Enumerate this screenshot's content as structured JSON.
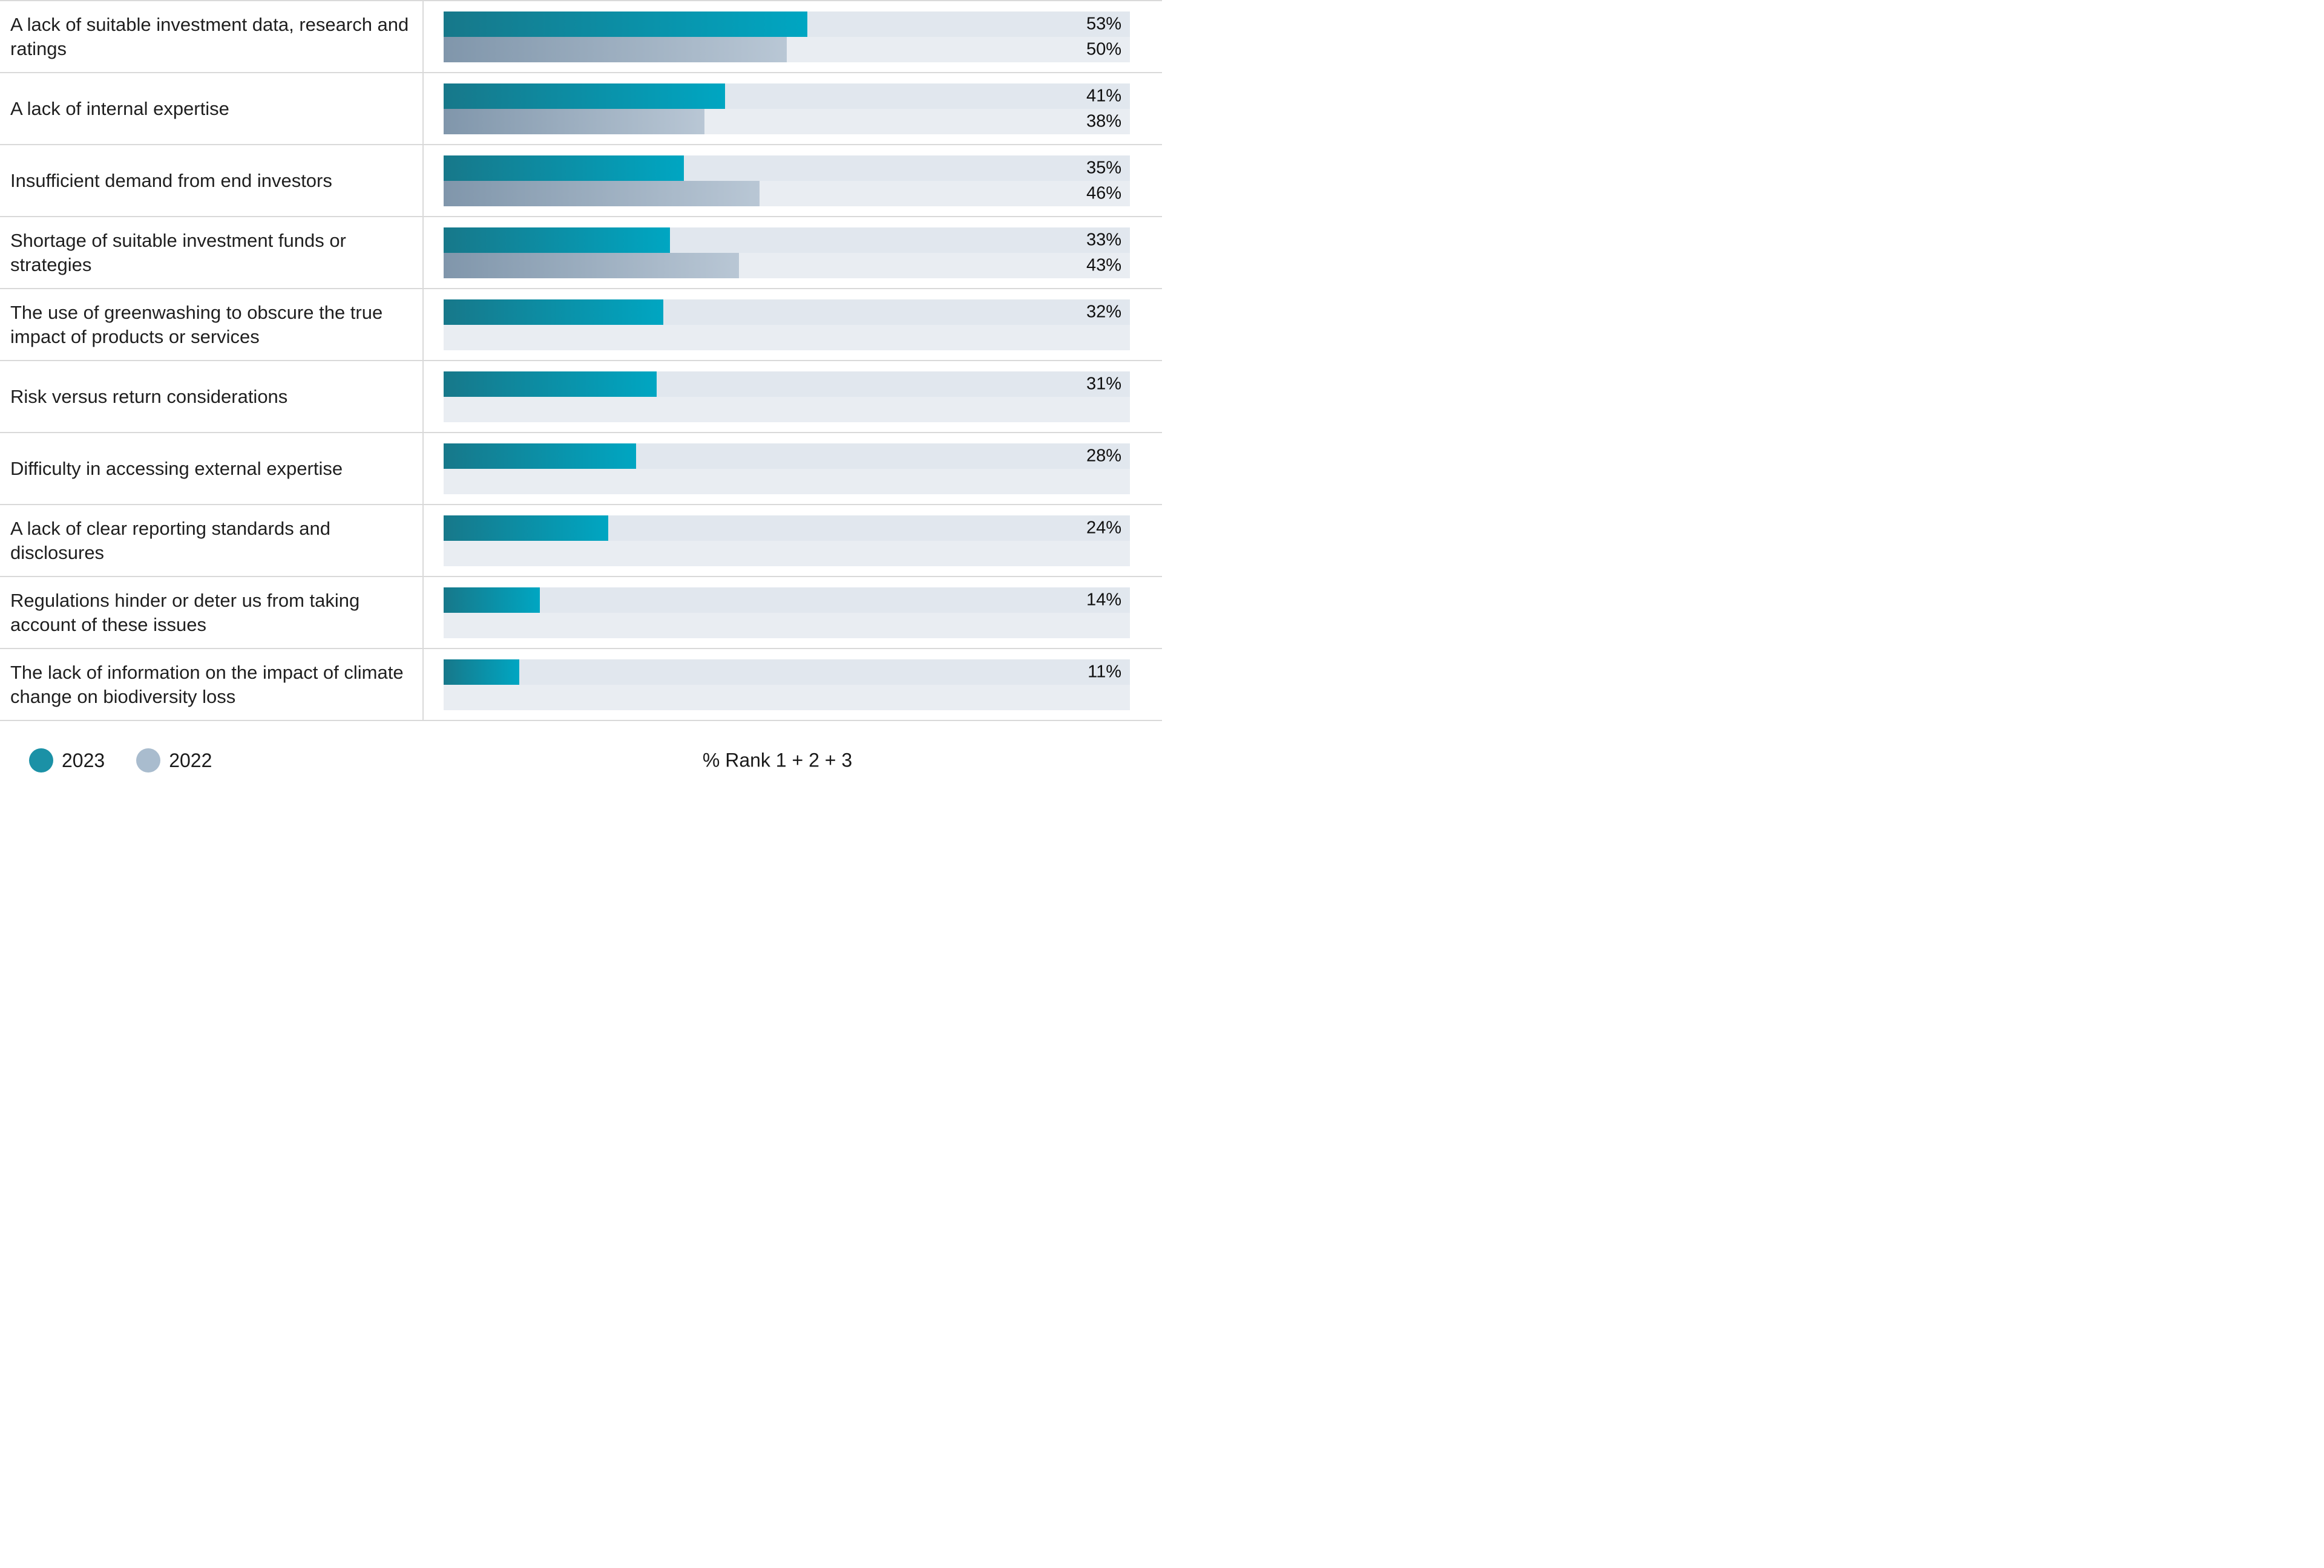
{
  "chart_data": {
    "type": "bar",
    "orientation": "horizontal",
    "title": "",
    "xlabel": "% Rank 1 + 2 + 3",
    "xlim": [
      0,
      100
    ],
    "value_suffix": "%",
    "grid": false,
    "legend_position": "bottom-left",
    "categories": [
      "A lack of suitable investment data, research and ratings",
      "A lack of internal expertise",
      "Insufficient demand from end investors",
      "Shortage of suitable investment funds or strategies",
      "The use of greenwashing to obscure the true impact of products or services",
      "Risk versus return considerations",
      "Difficulty in accessing external expertise",
      "A lack of clear reporting standards and disclosures",
      "Regulations hinder or deter us from taking account of these issues",
      "The lack of information on the impact of climate change on biodiversity loss"
    ],
    "series": [
      {
        "name": "2023",
        "values": [
          53,
          41,
          35,
          33,
          32,
          31,
          28,
          24,
          14,
          11
        ]
      },
      {
        "name": "2022",
        "values": [
          50,
          38,
          46,
          43,
          null,
          null,
          null,
          null,
          null,
          null
        ]
      }
    ]
  },
  "legend": {
    "items": [
      {
        "label": "2023",
        "color": "#1b91a6"
      },
      {
        "label": "2022",
        "color": "#a9bcce"
      }
    ]
  },
  "footer": {
    "axis_note": "% Rank 1 + 2 + 3"
  },
  "colors": {
    "bar_2023_start": "#17788a",
    "bar_2023_end": "#00a6c2",
    "bar_2022_start": "#8096ab",
    "bar_2022_end": "#b9c7d5",
    "track_top": "#e1e7ee",
    "track_bottom": "#e9edf2",
    "divider": "#d9d9d9"
  }
}
